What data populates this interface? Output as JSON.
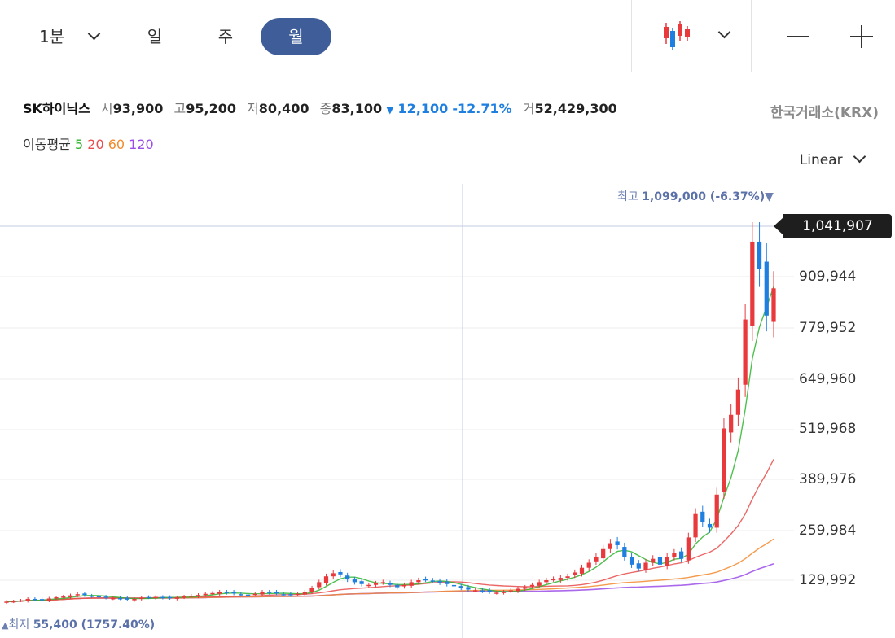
{
  "toolbar": {
    "period_1min": "1분",
    "period_day": "일",
    "period_week": "주",
    "period_month": "월",
    "selected": "월"
  },
  "header": {
    "name": "SK하이닉스",
    "open_label": "시",
    "open": "93,900",
    "high_label": "고",
    "high": "95,200",
    "low_label": "저",
    "low": "80,400",
    "close_label": "종",
    "close": "83,100",
    "change_arrow": "▼",
    "change": "12,100",
    "change_pct": "-12.71%",
    "volume_label": "거",
    "volume": "52,429,300",
    "exchange": "한국거래소(KRX)"
  },
  "moving_average": {
    "label": "이동평균",
    "p5": "5",
    "p20": "20",
    "p60": "60",
    "p120": "120",
    "colors": {
      "p5": "#2fb52f",
      "p20": "#e84c4c",
      "p60": "#f28a2e",
      "p120": "#9b4ee8"
    }
  },
  "scale_selector": {
    "label": "Linear"
  },
  "chart_data": {
    "type": "candlestick",
    "y_ticks": [
      "1,041,907",
      "909,944",
      "779,952",
      "649,960",
      "519,968",
      "389,976",
      "259,984",
      "129,992"
    ],
    "current_price_label": "1,041,907",
    "high_marker": {
      "label": "최고",
      "value": "1,099,000 (-6.37%)",
      "arrow": "▼"
    },
    "low_marker": {
      "label": "최저",
      "value": "55,400 (1757.40%)",
      "arrow": "▲"
    },
    "up_color": "#e8393d",
    "down_color": "#1e7fe0",
    "closes": [
      75000,
      76000,
      78000,
      82000,
      80000,
      79000,
      83000,
      86000,
      88000,
      91000,
      94000,
      92000,
      89000,
      86000,
      85000,
      84000,
      83000,
      80000,
      82000,
      85000,
      86000,
      87000,
      85000,
      84000,
      86000,
      88000,
      90000,
      92000,
      95000,
      97000,
      100000,
      98000,
      96000,
      93000,
      92000,
      95000,
      100000,
      98000,
      96000,
      94000,
      92000,
      95000,
      100000,
      110000,
      125000,
      140000,
      148000,
      145000,
      132000,
      125000,
      120000,
      118000,
      122000,
      125000,
      118000,
      112000,
      118000,
      125000,
      130000,
      132000,
      128000,
      124000,
      120000,
      115000,
      110000,
      106000,
      104000,
      102000,
      100000,
      98000,
      100000,
      104000,
      108000,
      112000,
      118000,
      125000,
      130000,
      133000,
      136000,
      140000,
      150000,
      162000,
      175000,
      190000,
      210000,
      225000,
      220000,
      190000,
      170000,
      160000,
      175000,
      185000,
      170000,
      190000,
      200000,
      185000,
      240000,
      300000,
      280000,
      265000,
      350000,
      520000,
      555000,
      620000,
      800000,
      1000000,
      930000,
      810000,
      880000
    ],
    "x_range": "monthly"
  }
}
